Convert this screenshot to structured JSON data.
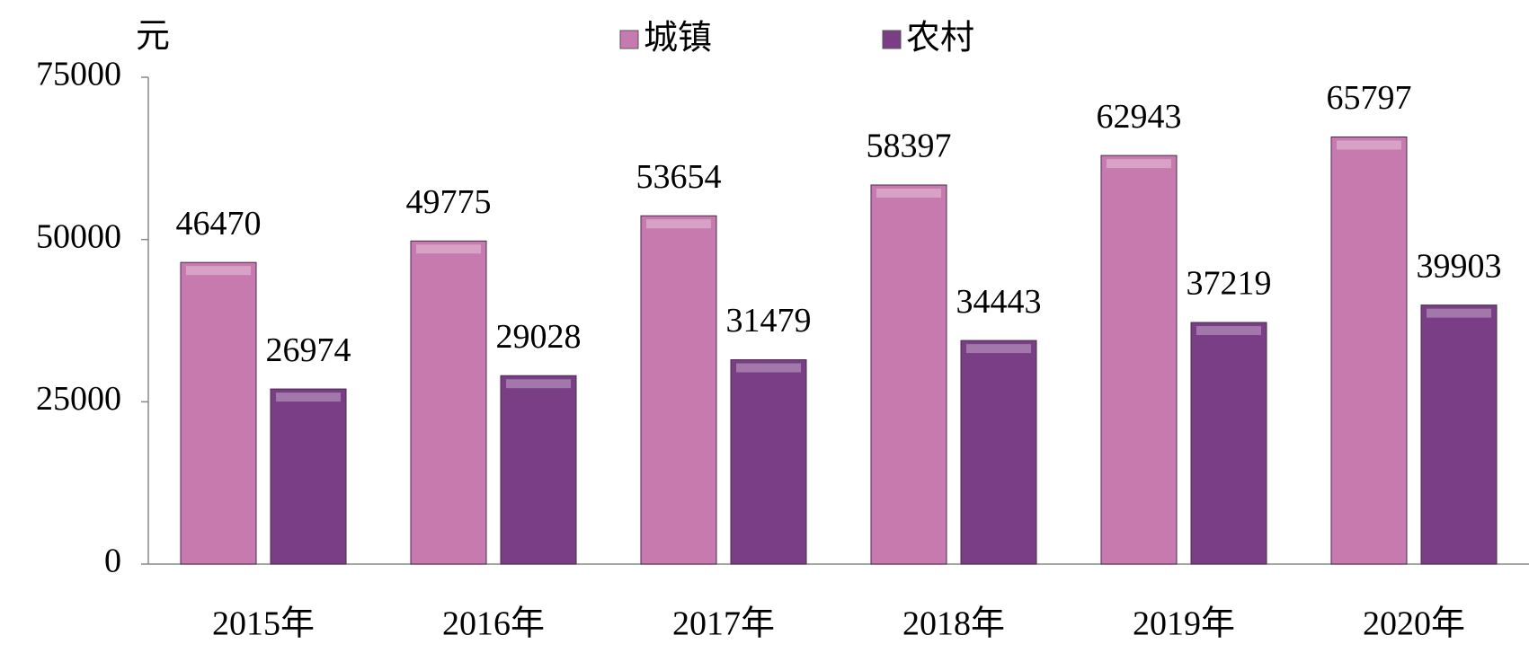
{
  "chart_data": {
    "type": "bar",
    "y_label": "元",
    "categories": [
      "2015年",
      "2016年",
      "2017年",
      "2018年",
      "2019年",
      "2020年"
    ],
    "series": [
      {
        "name": "城镇",
        "color": "#c67aae",
        "values": [
          46470,
          49775,
          53654,
          58397,
          62943,
          65797
        ]
      },
      {
        "name": "农村",
        "color": "#7a3e86",
        "values": [
          26974,
          29028,
          31479,
          34443,
          37219,
          39903
        ]
      }
    ],
    "ylim": [
      0,
      75000
    ],
    "yticks": [
      0,
      25000,
      50000,
      75000
    ],
    "grid": false,
    "legend": "top"
  }
}
